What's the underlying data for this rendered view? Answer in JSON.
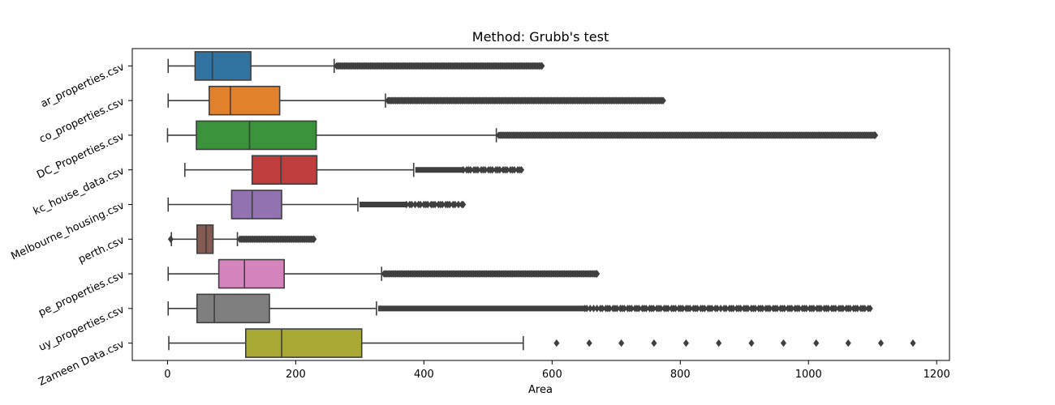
{
  "chart_data": {
    "type": "boxplot",
    "title": "Method: Grubb's test",
    "xlabel": "Area",
    "ylabel": "",
    "xlim": [
      -55,
      1220
    ],
    "xticks": [
      0,
      200,
      400,
      600,
      800,
      1000,
      1200
    ],
    "grid": false,
    "legend": "none",
    "outlier_marker": "diamond",
    "categories": [
      "ar_properties.csv",
      "co_properties.csv",
      "DC_Properties.csv",
      "kc_house_data.csv",
      "Melbourne_housing.csv",
      "perth.csv",
      "pe_properties.csv",
      "uy_properties.csv",
      "Zameen Data.csv"
    ],
    "series": [
      {
        "color": "#3274a1",
        "whisker_low": 1,
        "q1": 43,
        "median": 70,
        "q3": 130,
        "whisker_high": 260,
        "outlier_range": [
          260,
          588
        ],
        "outlier_style": "dense"
      },
      {
        "color": "#e1812c",
        "whisker_low": 1,
        "q1": 65,
        "median": 98,
        "q3": 175,
        "whisker_high": 340,
        "outlier_range": [
          340,
          777
        ],
        "outlier_style": "dense"
      },
      {
        "color": "#3a923a",
        "whisker_low": 0,
        "q1": 45,
        "median": 128,
        "q3": 232,
        "whisker_high": 513,
        "outlier_range": [
          513,
          1107
        ],
        "outlier_style": "dense"
      },
      {
        "color": "#c03d3e",
        "whisker_low": 27,
        "q1": 132,
        "median": 177,
        "q3": 233,
        "whisker_high": 384,
        "outlier_range": [
          384,
          556
        ],
        "outlier_style": "sparse"
      },
      {
        "color": "#9372b2",
        "whisker_low": 1,
        "q1": 100,
        "median": 132,
        "q3": 178,
        "whisker_high": 297,
        "outlier_range": [
          297,
          465
        ],
        "outlier_style": "sparse"
      },
      {
        "color": "#845b53",
        "whisker_low": 6,
        "q1": 46,
        "median": 60,
        "q3": 71,
        "whisker_high": 109,
        "outlier_range": [
          109,
          232
        ],
        "outlier_style": "dense",
        "low_outliers": [
          5
        ]
      },
      {
        "color": "#d684bd",
        "whisker_low": 1,
        "q1": 80,
        "median": 120,
        "q3": 182,
        "whisker_high": 334,
        "outlier_range": [
          334,
          673
        ],
        "outlier_style": "dense"
      },
      {
        "color": "#7f7f7f",
        "whisker_low": 1,
        "q1": 46,
        "median": 73,
        "q3": 159,
        "whisker_high": 326,
        "outlier_range": [
          326,
          1100
        ],
        "outlier_style": "mixed"
      },
      {
        "color": "#a9aa35",
        "whisker_low": 2,
        "q1": 122,
        "median": 178,
        "q3": 303,
        "whisker_high": 555,
        "outliers": [
          607,
          658,
          708,
          759,
          809,
          860,
          911,
          961,
          1012,
          1062,
          1113,
          1163
        ]
      }
    ]
  }
}
